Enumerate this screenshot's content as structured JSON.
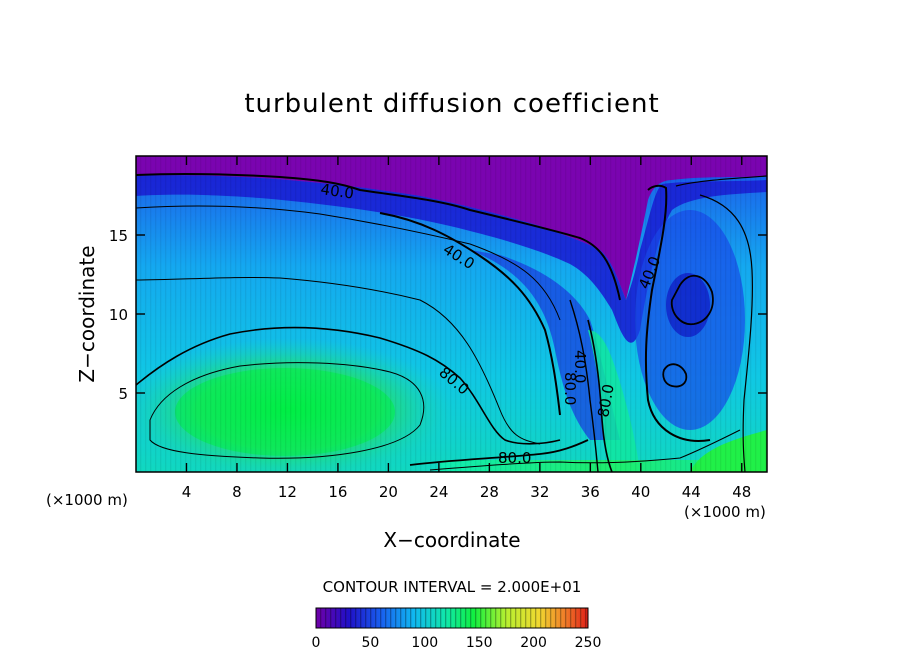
{
  "chart_data": {
    "type": "heatmap",
    "title": "turbulent diffusion coefficient",
    "xlabel": "X−coordinate",
    "ylabel": "Z−coordinate",
    "x_unit_left": "(×1000 m)",
    "x_unit_right": "(×1000 m)",
    "xlim": [
      0,
      50
    ],
    "ylim": [
      0,
      20
    ],
    "x_ticks": [
      4,
      8,
      12,
      16,
      20,
      24,
      28,
      32,
      36,
      40,
      44,
      48
    ],
    "y_ticks": [
      5,
      10,
      15
    ],
    "contour_interval_text": "CONTOUR INTERVAL = 2.000E+01",
    "contour_interval": 20,
    "contour_labels": [
      "40.0",
      "40.0",
      "40.0",
      "80.0",
      "80.0",
      "80.0",
      "40.0",
      "80.0"
    ],
    "colorbar": {
      "min": 0,
      "max": 250,
      "ticks": [
        0,
        50,
        100,
        150,
        200,
        250
      ]
    },
    "colors": {
      "low": "#7a00b0",
      "deep_blue": "#1420d8",
      "blue": "#1e6ef0",
      "cyan": "#14b4f0",
      "teal": "#10e0b0",
      "green": "#00ee40",
      "yellow": "#d8e830",
      "red": "#e83020"
    }
  }
}
